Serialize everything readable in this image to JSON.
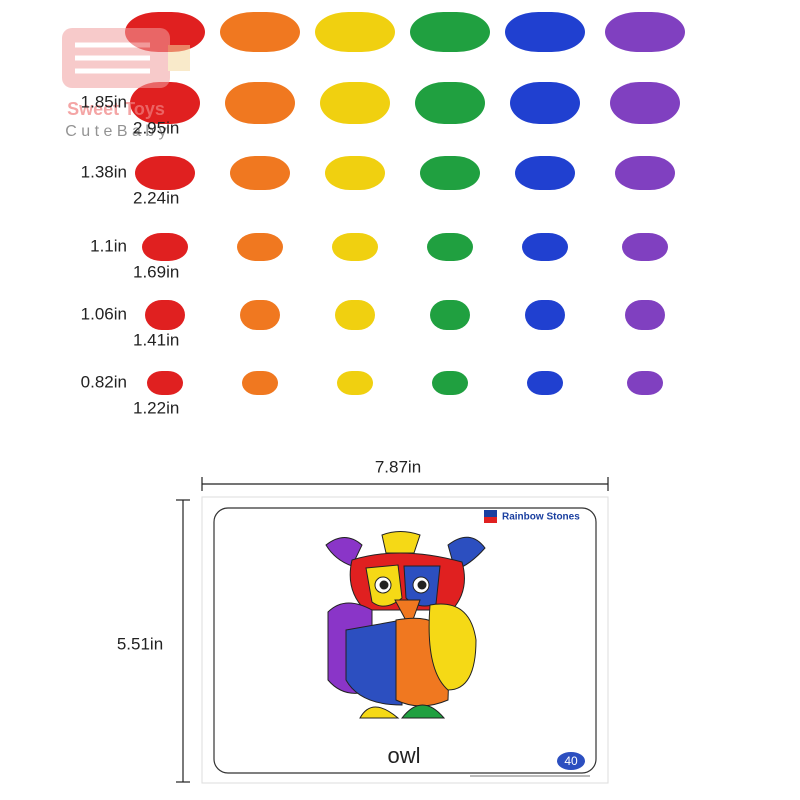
{
  "watermark": {
    "brand": "Sweet Toys",
    "tagline": "C u t e B a b y"
  },
  "size_rows": [
    {
      "height": "1.85in",
      "width": "2.95in"
    },
    {
      "height": "1.38in",
      "width": "2.24in"
    },
    {
      "height": "1.1in",
      "width": "1.69in"
    },
    {
      "height": "1.06in",
      "width": "1.41in"
    },
    {
      "height": "0.82in",
      "width": "1.22in"
    }
  ],
  "card": {
    "width_label": "7.87in",
    "height_label": "5.51in",
    "brand": "Rainbow Stones",
    "name": "owl",
    "number": "40"
  }
}
